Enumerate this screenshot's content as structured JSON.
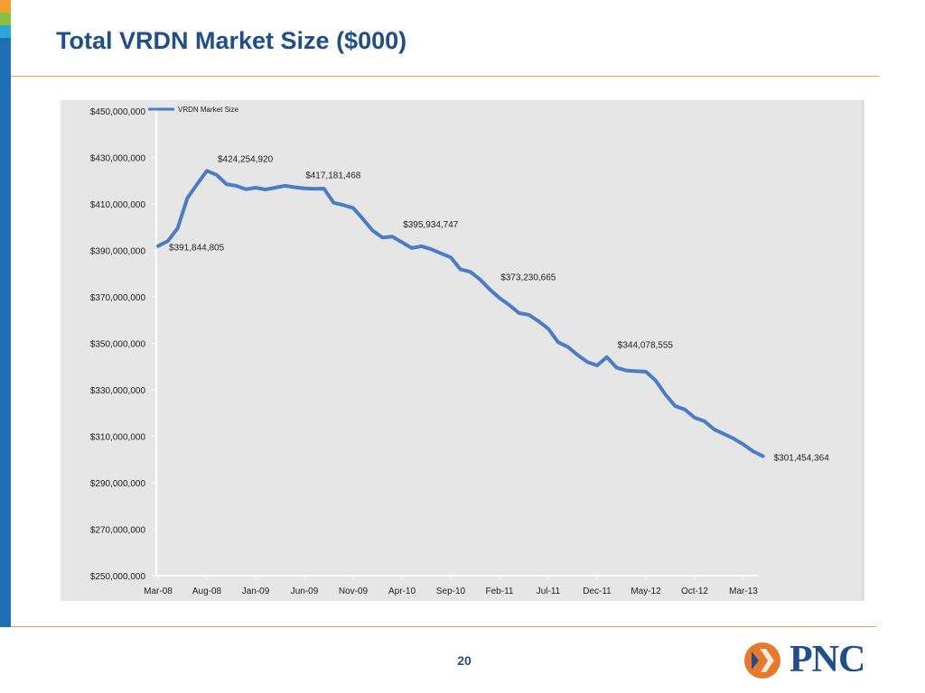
{
  "slide": {
    "title": "Total VRDN Market Size ($000)",
    "page_number": "20",
    "logo_text": "PNC",
    "colors": {
      "accent": "#1f6fb4",
      "title": "#1f4e8c",
      "rule": "#f0a050",
      "line": "#4a7dc6",
      "logo_orange": "#e8782a"
    }
  },
  "chart_data": {
    "type": "line",
    "ylim": [
      250000000,
      450000000
    ],
    "y_ticks": [
      250000000,
      270000000,
      290000000,
      310000000,
      330000000,
      350000000,
      370000000,
      390000000,
      410000000,
      430000000,
      450000000
    ],
    "y_tick_labels": [
      "$250,000,000",
      "$270,000,000",
      "$290,000,000",
      "$310,000,000",
      "$330,000,000",
      "$350,000,000",
      "$370,000,000",
      "$390,000,000",
      "$410,000,000",
      "$430,000,000",
      "$450,000,000"
    ],
    "x_tick_labels": [
      "Mar-08",
      "Aug-08",
      "Jan-09",
      "Jun-09",
      "Nov-09",
      "Apr-10",
      "Sep-10",
      "Feb-11",
      "Jul-11",
      "Dec-11",
      "May-12",
      "Oct-12",
      "Mar-13"
    ],
    "x_tick_step": 5,
    "grid": false,
    "legend_position": "top-left",
    "series": [
      {
        "name": "VRDN Market Size",
        "color": "#4a7dc6",
        "values": [
          391844805,
          394000000,
          399500000,
          412500000,
          418500000,
          424254920,
          422500000,
          418500000,
          417800000,
          416300000,
          417000000,
          416200000,
          417000000,
          417800000,
          417181468,
          416700000,
          416500000,
          416600000,
          410500000,
          409500000,
          408300000,
          403500000,
          398500000,
          395500000,
          395934747,
          393500000,
          391000000,
          391800000,
          390500000,
          388700000,
          387000000,
          381800000,
          380800000,
          377500000,
          373230665,
          369500000,
          366500000,
          363000000,
          362300000,
          359500000,
          356300000,
          350500000,
          348500000,
          345000000,
          342000000,
          340500000,
          344078555,
          339500000,
          338300000,
          338000000,
          337800000,
          334000000,
          328000000,
          323000000,
          321500000,
          318000000,
          316500000,
          313000000,
          311000000,
          309000000,
          306500000,
          303500000,
          301454364
        ]
      }
    ],
    "annotations": [
      {
        "index": 0,
        "label": "$391,844,805"
      },
      {
        "index": 5,
        "label": "$424,254,920"
      },
      {
        "index": 14,
        "label": "$417,181,468"
      },
      {
        "index": 24,
        "label": "$395,934,747"
      },
      {
        "index": 34,
        "label": "$373,230,665"
      },
      {
        "index": 46,
        "label": "$344,078,555"
      },
      {
        "index": 62,
        "label": "$301,454,364"
      }
    ]
  }
}
